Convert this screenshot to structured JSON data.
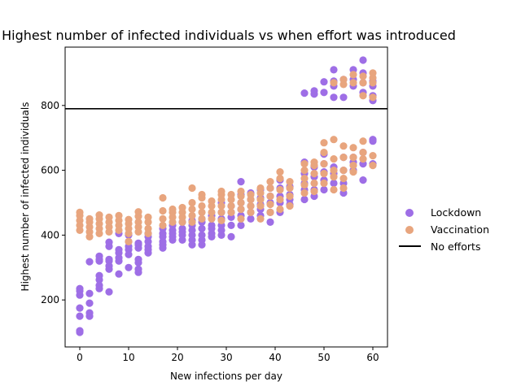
{
  "chart_data": {
    "type": "scatter",
    "title": "Highest number of infected individuals vs when effort was introduced",
    "xlabel": "New infections per day",
    "ylabel": "Highest number of infected individuals",
    "xlim": [
      -3,
      63
    ],
    "ylim": [
      55,
      980
    ],
    "x_ticks": [
      0,
      10,
      20,
      30,
      40,
      50,
      60
    ],
    "y_ticks": [
      200,
      400,
      600,
      800
    ],
    "grid": false,
    "legend_position": "right",
    "hline": {
      "name": "No efforts",
      "y": 790,
      "color": "#000000"
    },
    "series": [
      {
        "name": "Lockdown",
        "color": "#9e6ee6",
        "points": [
          [
            0,
            100
          ],
          [
            0,
            105
          ],
          [
            0,
            150
          ],
          [
            0,
            175
          ],
          [
            0,
            215
          ],
          [
            0,
            228
          ],
          [
            0,
            235
          ],
          [
            2,
            150
          ],
          [
            2,
            160
          ],
          [
            2,
            190
          ],
          [
            2,
            220
          ],
          [
            2,
            318
          ],
          [
            4,
            235
          ],
          [
            4,
            245
          ],
          [
            4,
            262
          ],
          [
            4,
            275
          ],
          [
            4,
            320
          ],
          [
            4,
            325
          ],
          [
            4,
            335
          ],
          [
            6,
            225
          ],
          [
            6,
            295
          ],
          [
            6,
            305
          ],
          [
            6,
            320
          ],
          [
            6,
            325
          ],
          [
            6,
            365
          ],
          [
            6,
            378
          ],
          [
            8,
            280
          ],
          [
            8,
            320
          ],
          [
            8,
            330
          ],
          [
            8,
            345
          ],
          [
            8,
            355
          ],
          [
            8,
            405
          ],
          [
            10,
            300
          ],
          [
            10,
            340
          ],
          [
            10,
            355
          ],
          [
            10,
            365
          ],
          [
            10,
            380
          ],
          [
            10,
            400
          ],
          [
            12,
            285
          ],
          [
            12,
            295
          ],
          [
            12,
            315
          ],
          [
            12,
            325
          ],
          [
            12,
            360
          ],
          [
            12,
            370
          ],
          [
            12,
            375
          ],
          [
            14,
            345
          ],
          [
            14,
            355
          ],
          [
            14,
            365
          ],
          [
            14,
            380
          ],
          [
            14,
            395
          ],
          [
            14,
            405
          ],
          [
            17,
            360
          ],
          [
            17,
            370
          ],
          [
            17,
            380
          ],
          [
            17,
            395
          ],
          [
            17,
            405
          ],
          [
            17,
            420
          ],
          [
            19,
            385
          ],
          [
            19,
            395
          ],
          [
            19,
            405
          ],
          [
            19,
            415
          ],
          [
            19,
            430
          ],
          [
            21,
            385
          ],
          [
            21,
            400
          ],
          [
            21,
            410
          ],
          [
            21,
            420
          ],
          [
            21,
            440
          ],
          [
            23,
            370
          ],
          [
            23,
            385
          ],
          [
            23,
            400
          ],
          [
            23,
            415
          ],
          [
            23,
            430
          ],
          [
            23,
            445
          ],
          [
            25,
            370
          ],
          [
            25,
            385
          ],
          [
            25,
            400
          ],
          [
            25,
            420
          ],
          [
            25,
            440
          ],
          [
            25,
            450
          ],
          [
            27,
            395
          ],
          [
            27,
            405
          ],
          [
            27,
            420
          ],
          [
            27,
            430
          ],
          [
            27,
            460
          ],
          [
            29,
            400
          ],
          [
            29,
            415
          ],
          [
            29,
            430
          ],
          [
            29,
            450
          ],
          [
            29,
            470
          ],
          [
            29,
            500
          ],
          [
            31,
            395
          ],
          [
            31,
            430
          ],
          [
            31,
            455
          ],
          [
            31,
            470
          ],
          [
            31,
            490
          ],
          [
            33,
            430
          ],
          [
            33,
            460
          ],
          [
            33,
            480
          ],
          [
            33,
            500
          ],
          [
            33,
            525
          ],
          [
            33,
            565
          ],
          [
            35,
            450
          ],
          [
            35,
            470
          ],
          [
            35,
            490
          ],
          [
            35,
            510
          ],
          [
            35,
            530
          ],
          [
            37,
            460
          ],
          [
            37,
            480
          ],
          [
            37,
            495
          ],
          [
            37,
            515
          ],
          [
            37,
            540
          ],
          [
            39,
            440
          ],
          [
            39,
            470
          ],
          [
            39,
            500
          ],
          [
            39,
            520
          ],
          [
            39,
            545
          ],
          [
            41,
            470
          ],
          [
            41,
            500
          ],
          [
            41,
            520
          ],
          [
            41,
            545
          ],
          [
            41,
            570
          ],
          [
            43,
            495
          ],
          [
            43,
            510
          ],
          [
            43,
            525
          ],
          [
            43,
            550
          ],
          [
            46,
            510
          ],
          [
            46,
            540
          ],
          [
            46,
            560
          ],
          [
            46,
            590
          ],
          [
            46,
            625
          ],
          [
            46,
            838
          ],
          [
            48,
            520
          ],
          [
            48,
            540
          ],
          [
            48,
            580
          ],
          [
            48,
            610
          ],
          [
            48,
            835
          ],
          [
            48,
            845
          ],
          [
            50,
            540
          ],
          [
            50,
            570
          ],
          [
            50,
            595
          ],
          [
            50,
            620
          ],
          [
            50,
            650
          ],
          [
            50,
            840
          ],
          [
            50,
            873
          ],
          [
            52,
            560
          ],
          [
            52,
            590
          ],
          [
            52,
            610
          ],
          [
            52,
            825
          ],
          [
            52,
            860
          ],
          [
            52,
            875
          ],
          [
            52,
            910
          ],
          [
            54,
            530
          ],
          [
            54,
            560
          ],
          [
            54,
            600
          ],
          [
            54,
            640
          ],
          [
            54,
            825
          ],
          [
            54,
            880
          ],
          [
            56,
            600
          ],
          [
            56,
            625
          ],
          [
            56,
            640
          ],
          [
            56,
            860
          ],
          [
            56,
            880
          ],
          [
            56,
            910
          ],
          [
            58,
            570
          ],
          [
            58,
            620
          ],
          [
            58,
            655
          ],
          [
            58,
            840
          ],
          [
            58,
            870
          ],
          [
            58,
            900
          ],
          [
            58,
            940
          ],
          [
            60,
            620
          ],
          [
            60,
            690
          ],
          [
            60,
            695
          ],
          [
            60,
            815
          ],
          [
            60,
            830
          ],
          [
            60,
            860
          ],
          [
            60,
            875
          ]
        ]
      },
      {
        "name": "Vaccination",
        "color": "#e8a57e",
        "points": [
          [
            0,
            415
          ],
          [
            0,
            430
          ],
          [
            0,
            445
          ],
          [
            0,
            460
          ],
          [
            0,
            470
          ],
          [
            2,
            395
          ],
          [
            2,
            410
          ],
          [
            2,
            425
          ],
          [
            2,
            440
          ],
          [
            2,
            450
          ],
          [
            4,
            405
          ],
          [
            4,
            420
          ],
          [
            4,
            435
          ],
          [
            4,
            450
          ],
          [
            4,
            462
          ],
          [
            6,
            410
          ],
          [
            6,
            425
          ],
          [
            6,
            440
          ],
          [
            6,
            455
          ],
          [
            8,
            415
          ],
          [
            8,
            430
          ],
          [
            8,
            445
          ],
          [
            8,
            460
          ],
          [
            10,
            380
          ],
          [
            10,
            405
          ],
          [
            10,
            420
          ],
          [
            10,
            435
          ],
          [
            10,
            448
          ],
          [
            12,
            410
          ],
          [
            12,
            425
          ],
          [
            12,
            440
          ],
          [
            12,
            458
          ],
          [
            12,
            472
          ],
          [
            14,
            405
          ],
          [
            14,
            420
          ],
          [
            14,
            440
          ],
          [
            14,
            455
          ],
          [
            17,
            430
          ],
          [
            17,
            450
          ],
          [
            17,
            475
          ],
          [
            17,
            515
          ],
          [
            19,
            440
          ],
          [
            19,
            455
          ],
          [
            19,
            470
          ],
          [
            19,
            480
          ],
          [
            21,
            440
          ],
          [
            21,
            455
          ],
          [
            21,
            470
          ],
          [
            21,
            485
          ],
          [
            23,
            440
          ],
          [
            23,
            460
          ],
          [
            23,
            480
          ],
          [
            23,
            500
          ],
          [
            23,
            545
          ],
          [
            25,
            450
          ],
          [
            25,
            470
          ],
          [
            25,
            490
          ],
          [
            25,
            515
          ],
          [
            25,
            525
          ],
          [
            27,
            450
          ],
          [
            27,
            470
          ],
          [
            27,
            490
          ],
          [
            27,
            505
          ],
          [
            29,
            445
          ],
          [
            29,
            470
          ],
          [
            29,
            490
          ],
          [
            29,
            510
          ],
          [
            29,
            525
          ],
          [
            29,
            535
          ],
          [
            31,
            470
          ],
          [
            31,
            490
          ],
          [
            31,
            510
          ],
          [
            31,
            525
          ],
          [
            33,
            450
          ],
          [
            33,
            480
          ],
          [
            33,
            500
          ],
          [
            33,
            520
          ],
          [
            33,
            535
          ],
          [
            35,
            470
          ],
          [
            35,
            490
          ],
          [
            35,
            510
          ],
          [
            35,
            525
          ],
          [
            37,
            450
          ],
          [
            37,
            490
          ],
          [
            37,
            510
          ],
          [
            37,
            530
          ],
          [
            37,
            545
          ],
          [
            39,
            470
          ],
          [
            39,
            495
          ],
          [
            39,
            520
          ],
          [
            39,
            545
          ],
          [
            39,
            565
          ],
          [
            41,
            480
          ],
          [
            41,
            510
          ],
          [
            41,
            540
          ],
          [
            41,
            575
          ],
          [
            41,
            595
          ],
          [
            43,
            490
          ],
          [
            43,
            520
          ],
          [
            43,
            545
          ],
          [
            43,
            565
          ],
          [
            46,
            530
          ],
          [
            46,
            555
          ],
          [
            46,
            575
          ],
          [
            46,
            600
          ],
          [
            46,
            620
          ],
          [
            48,
            535
          ],
          [
            48,
            560
          ],
          [
            48,
            590
          ],
          [
            48,
            615
          ],
          [
            48,
            625
          ],
          [
            50,
            560
          ],
          [
            50,
            590
          ],
          [
            50,
            620
          ],
          [
            50,
            655
          ],
          [
            50,
            685
          ],
          [
            52,
            540
          ],
          [
            52,
            580
          ],
          [
            52,
            600
          ],
          [
            52,
            635
          ],
          [
            52,
            695
          ],
          [
            52,
            870
          ],
          [
            54,
            545
          ],
          [
            54,
            575
          ],
          [
            54,
            600
          ],
          [
            54,
            640
          ],
          [
            54,
            675
          ],
          [
            54,
            865
          ],
          [
            54,
            880
          ],
          [
            56,
            595
          ],
          [
            56,
            615
          ],
          [
            56,
            640
          ],
          [
            56,
            670
          ],
          [
            56,
            870
          ],
          [
            56,
            895
          ],
          [
            58,
            635
          ],
          [
            58,
            655
          ],
          [
            58,
            690
          ],
          [
            58,
            830
          ],
          [
            58,
            870
          ],
          [
            58,
            890
          ],
          [
            60,
            615
          ],
          [
            60,
            645
          ],
          [
            60,
            825
          ],
          [
            60,
            870
          ],
          [
            60,
            885
          ],
          [
            60,
            900
          ]
        ]
      }
    ]
  }
}
